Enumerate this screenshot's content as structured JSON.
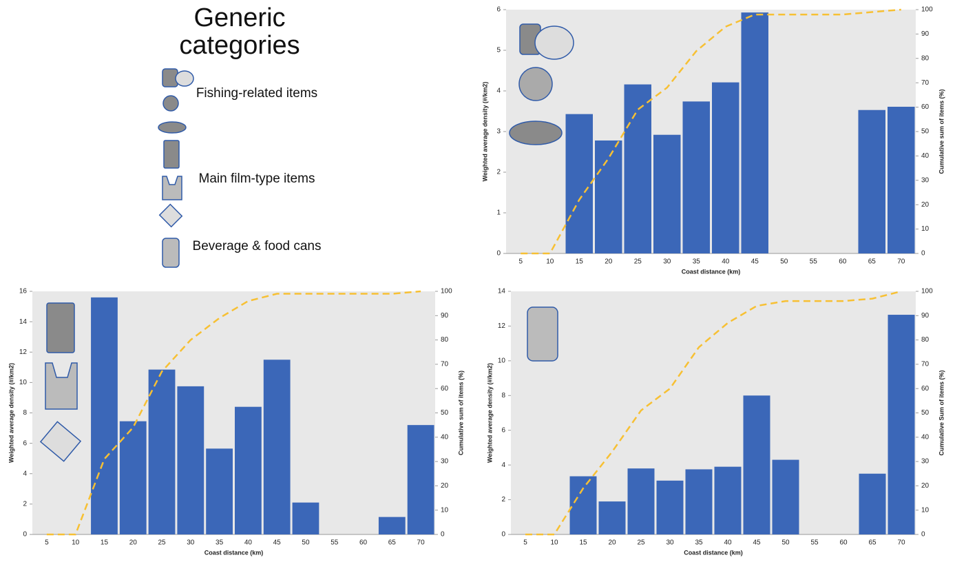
{
  "legend_panel": {
    "title": "Generic categories",
    "items": [
      "Fishing-related items",
      "Main film-type items",
      "Beverage & food cans"
    ]
  },
  "chart_data": [
    {
      "type": "bar",
      "categories": [
        "5",
        "10",
        "15",
        "20",
        "25",
        "30",
        "35",
        "40",
        "45",
        "50",
        "55",
        "60",
        "65",
        "70"
      ],
      "x_label": "Coast distance (km)",
      "y_label": "Weighted average density (#/km2)",
      "y2_label": "Cumulative sum of items (%)",
      "ylim": [
        0,
        6
      ],
      "yticks": [
        0,
        1,
        2,
        3,
        4,
        5,
        6
      ],
      "y2lim": [
        0,
        100
      ],
      "y2ticks": [
        0,
        10,
        20,
        30,
        40,
        50,
        60,
        70,
        80,
        90,
        100
      ],
      "series": [
        {
          "color": "#3b67b8",
          "values": [
            0,
            0,
            3.43,
            2.78,
            4.16,
            2.92,
            3.74,
            4.21,
            5.93,
            0,
            0,
            0,
            3.53,
            3.61
          ]
        },
        {
          "type": "line",
          "axis": "y2",
          "dashed": true,
          "color": "#f7c033",
          "values": [
            0,
            0,
            22,
            39,
            59,
            68,
            83,
            93,
            98,
            98,
            98,
            98,
            99,
            100
          ]
        }
      ]
    },
    {
      "type": "bar",
      "categories": [
        "5",
        "10",
        "15",
        "20",
        "25",
        "30",
        "35",
        "40",
        "45",
        "50",
        "55",
        "60",
        "65",
        "70"
      ],
      "x_label": "Coast distance (km)",
      "y_label": "Weighted average density (#/km2)",
      "y2_label": "Cumulative sum of items (%)",
      "ylim": [
        0,
        16
      ],
      "yticks": [
        0,
        2,
        4,
        6,
        8,
        10,
        12,
        14,
        16
      ],
      "y2lim": [
        0,
        100
      ],
      "y2ticks": [
        0,
        10,
        20,
        30,
        40,
        50,
        60,
        70,
        80,
        90,
        100
      ],
      "series": [
        {
          "color": "#3b67b8",
          "values": [
            0,
            0,
            15.6,
            7.45,
            10.85,
            9.75,
            5.65,
            8.4,
            11.5,
            2.1,
            0,
            0,
            1.15,
            7.2
          ]
        },
        {
          "type": "line",
          "axis": "y2",
          "dashed": true,
          "color": "#f7c033",
          "values": [
            0,
            0,
            31,
            44,
            67,
            80,
            89,
            96,
            99,
            99,
            99,
            99,
            99,
            100
          ]
        }
      ]
    },
    {
      "type": "bar",
      "categories": [
        "5",
        "10",
        "15",
        "20",
        "25",
        "30",
        "35",
        "40",
        "45",
        "50",
        "55",
        "60",
        "65",
        "70"
      ],
      "x_label": "Coast distance (km)",
      "y_label": "Weighted average density (#/km2)",
      "y2_label": "Cumulative Sum of items (%)",
      "ylim": [
        0,
        14
      ],
      "yticks": [
        0,
        2,
        4,
        6,
        8,
        10,
        12,
        14
      ],
      "y2lim": [
        0,
        100
      ],
      "y2ticks": [
        0,
        10,
        20,
        30,
        40,
        50,
        60,
        70,
        80,
        90,
        100
      ],
      "series": [
        {
          "color": "#3b67b8",
          "values": [
            0,
            0,
            3.35,
            1.9,
            3.8,
            3.1,
            3.75,
            3.9,
            8.0,
            4.3,
            0,
            0,
            3.5,
            12.65
          ]
        },
        {
          "type": "line",
          "axis": "y2",
          "dashed": true,
          "color": "#f7c033",
          "values": [
            0,
            0,
            19,
            34,
            51,
            60,
            77,
            87,
            94,
            96,
            96,
            96,
            97,
            100
          ]
        }
      ]
    }
  ]
}
